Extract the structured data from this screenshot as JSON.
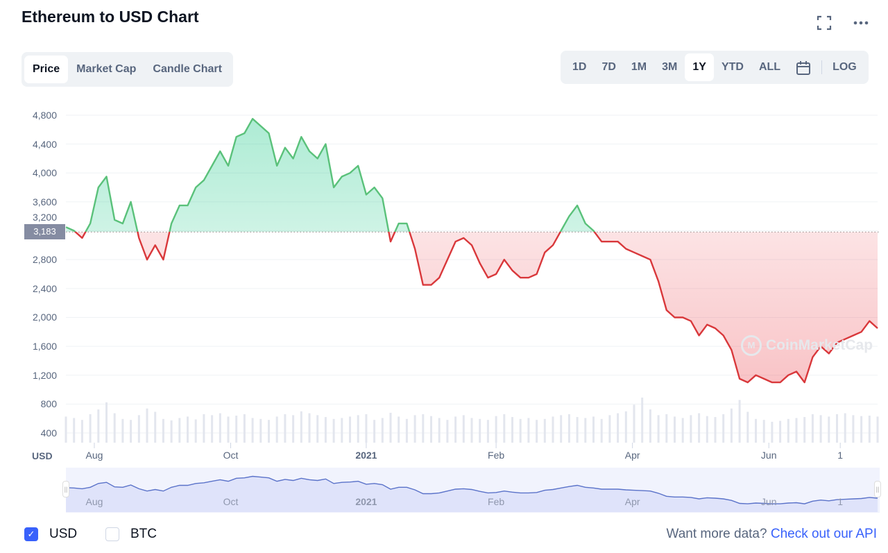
{
  "title": "Ethereum to USD Chart",
  "header_icons": [
    "fullscreen-icon",
    "more-icon"
  ],
  "tabs": [
    {
      "label": "Price",
      "active": true
    },
    {
      "label": "Market Cap",
      "active": false
    },
    {
      "label": "Candle Chart",
      "active": false
    }
  ],
  "ranges": [
    {
      "label": "1D"
    },
    {
      "label": "7D"
    },
    {
      "label": "1M"
    },
    {
      "label": "3M"
    },
    {
      "label": "1Y",
      "active": true
    },
    {
      "label": "YTD"
    },
    {
      "label": "ALL"
    }
  ],
  "log_label": "LOG",
  "currency_label": "USD",
  "watermark": "CoinMarketCap",
  "colors": {
    "up": "#16c784",
    "up_line": "#5ac17a",
    "down": "#d9383b",
    "accent": "#3861fb",
    "nav_fill": "#dfe3fa",
    "nav_line": "#5a72c9"
  },
  "chart_data": {
    "type": "line",
    "title": "Ethereum to USD Chart",
    "ylabel": "USD",
    "ylim": [
      400,
      4800
    ],
    "yticks": [
      "4,800",
      "4,400",
      "4,000",
      "3,600",
      "3,200",
      "2,800",
      "2,400",
      "2,000",
      "1,600",
      "1,200",
      "800",
      "400"
    ],
    "ytick_values": [
      4800,
      4400,
      4000,
      3600,
      3200,
      2800,
      2400,
      2000,
      1600,
      1200,
      800,
      400
    ],
    "baseline": 3183,
    "baseline_label": "3,183",
    "xticks": [
      {
        "label": "Aug",
        "i": 3.5
      },
      {
        "label": "Oct",
        "i": 20.3
      },
      {
        "label": "2021",
        "i": 37,
        "bold": true
      },
      {
        "label": "Feb",
        "i": 53
      },
      {
        "label": "Apr",
        "i": 69.8
      },
      {
        "label": "Jun",
        "i": 86.6
      },
      {
        "label": "1",
        "i": 95.4
      }
    ],
    "price": [
      3250,
      3200,
      3100,
      3300,
      3800,
      3950,
      3350,
      3300,
      3600,
      3100,
      2800,
      3000,
      2800,
      3300,
      3550,
      3550,
      3800,
      3900,
      4100,
      4300,
      4100,
      4500,
      4550,
      4750,
      4650,
      4550,
      4100,
      4350,
      4200,
      4500,
      4300,
      4200,
      4400,
      3800,
      3950,
      4000,
      4100,
      3700,
      3800,
      3650,
      3050,
      3300,
      3300,
      2950,
      2450,
      2450,
      2550,
      2800,
      3050,
      3100,
      3000,
      2750,
      2550,
      2600,
      2800,
      2650,
      2550,
      2550,
      2600,
      2900,
      3000,
      3200,
      3400,
      3550,
      3300,
      3200,
      3050,
      3050,
      3050,
      2950,
      2900,
      2850,
      2800,
      2500,
      2100,
      2000,
      2000,
      1950,
      1750,
      1900,
      1850,
      1750,
      1550,
      1150,
      1100,
      1200,
      1150,
      1100,
      1100,
      1200,
      1250,
      1100,
      1450,
      1600,
      1500,
      1650,
      1700,
      1750,
      1800,
      1950,
      1850
    ],
    "volume": [
      55,
      52,
      48,
      60,
      70,
      85,
      62,
      50,
      48,
      58,
      72,
      65,
      50,
      47,
      52,
      55,
      49,
      60,
      58,
      62,
      55,
      57,
      60,
      52,
      50,
      48,
      55,
      60,
      58,
      66,
      62,
      58,
      54,
      50,
      52,
      55,
      58,
      60,
      48,
      52,
      63,
      55,
      50,
      58,
      60,
      56,
      52,
      48,
      55,
      58,
      52,
      50,
      48,
      56,
      60,
      54,
      50,
      52,
      48,
      50,
      55,
      58,
      60,
      54,
      52,
      55,
      50,
      58,
      62,
      66,
      80,
      95,
      70,
      58,
      60,
      55,
      52,
      58,
      62,
      56,
      54,
      60,
      72,
      90,
      65,
      50,
      48,
      44,
      46,
      50,
      52,
      54,
      60,
      58,
      55,
      60,
      62,
      58,
      56,
      57,
      55
    ]
  },
  "legend": [
    {
      "label": "USD",
      "checked": true
    },
    {
      "label": "BTC",
      "checked": false
    }
  ],
  "api": {
    "prefix": "Want more data?",
    "link": "Check out our API"
  }
}
